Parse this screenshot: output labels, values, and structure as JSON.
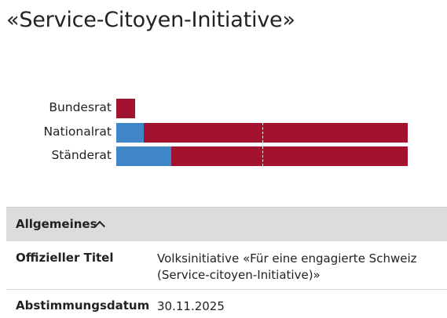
{
  "page": {
    "title": "«Service-Citoyen-Initiative»"
  },
  "vote_results": {
    "colors": {
      "yes": "#3f87c9",
      "no": "#a3122e"
    },
    "bodies": [
      {
        "label": "Bundesrat",
        "yes_fraction": 0.0,
        "no_fraction": 0.065
      },
      {
        "label": "Nationalrat",
        "yes_fraction": 0.095,
        "no_fraction": 0.905,
        "majority_marker": true
      },
      {
        "label": "Ständerat",
        "yes_fraction": 0.19,
        "no_fraction": 0.81,
        "majority_marker": true
      }
    ]
  },
  "info": {
    "section_title": "Allgemeines",
    "section_expanded": true,
    "rows": [
      {
        "key": "Offizieller Titel",
        "value": "Volksinitiative «Für eine engagierte Schweiz (Service-citoyen-Initiative)»"
      },
      {
        "key": "Abstimmungsdatum",
        "value": "30.11.2025"
      }
    ]
  }
}
